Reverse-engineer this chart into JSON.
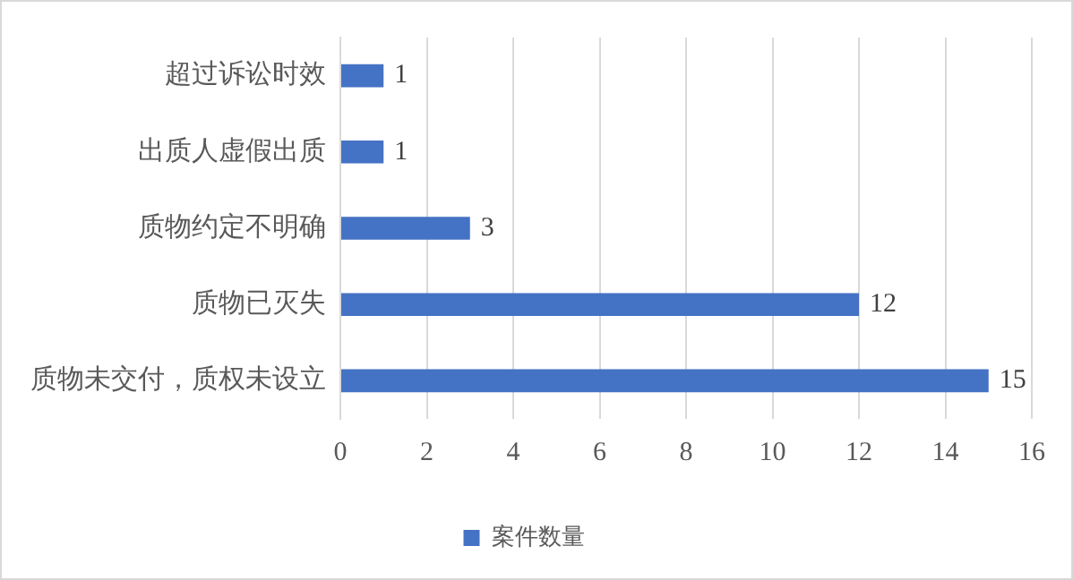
{
  "chart_data": {
    "type": "bar",
    "orientation": "horizontal",
    "categories": [
      "超过诉讼时效",
      "出质人虚假出质",
      "质物约定不明确",
      "质物已灭失",
      "质物未交付，质权未设立"
    ],
    "series": [
      {
        "name": "案件数量",
        "color": "#4472c4",
        "values": [
          1,
          1,
          3,
          12,
          15
        ]
      }
    ],
    "xlim": [
      0,
      16
    ],
    "xticks": [
      0,
      2,
      4,
      6,
      8,
      10,
      12,
      14,
      16
    ],
    "grid": "x",
    "legend": "bottom",
    "data_labels": true
  }
}
